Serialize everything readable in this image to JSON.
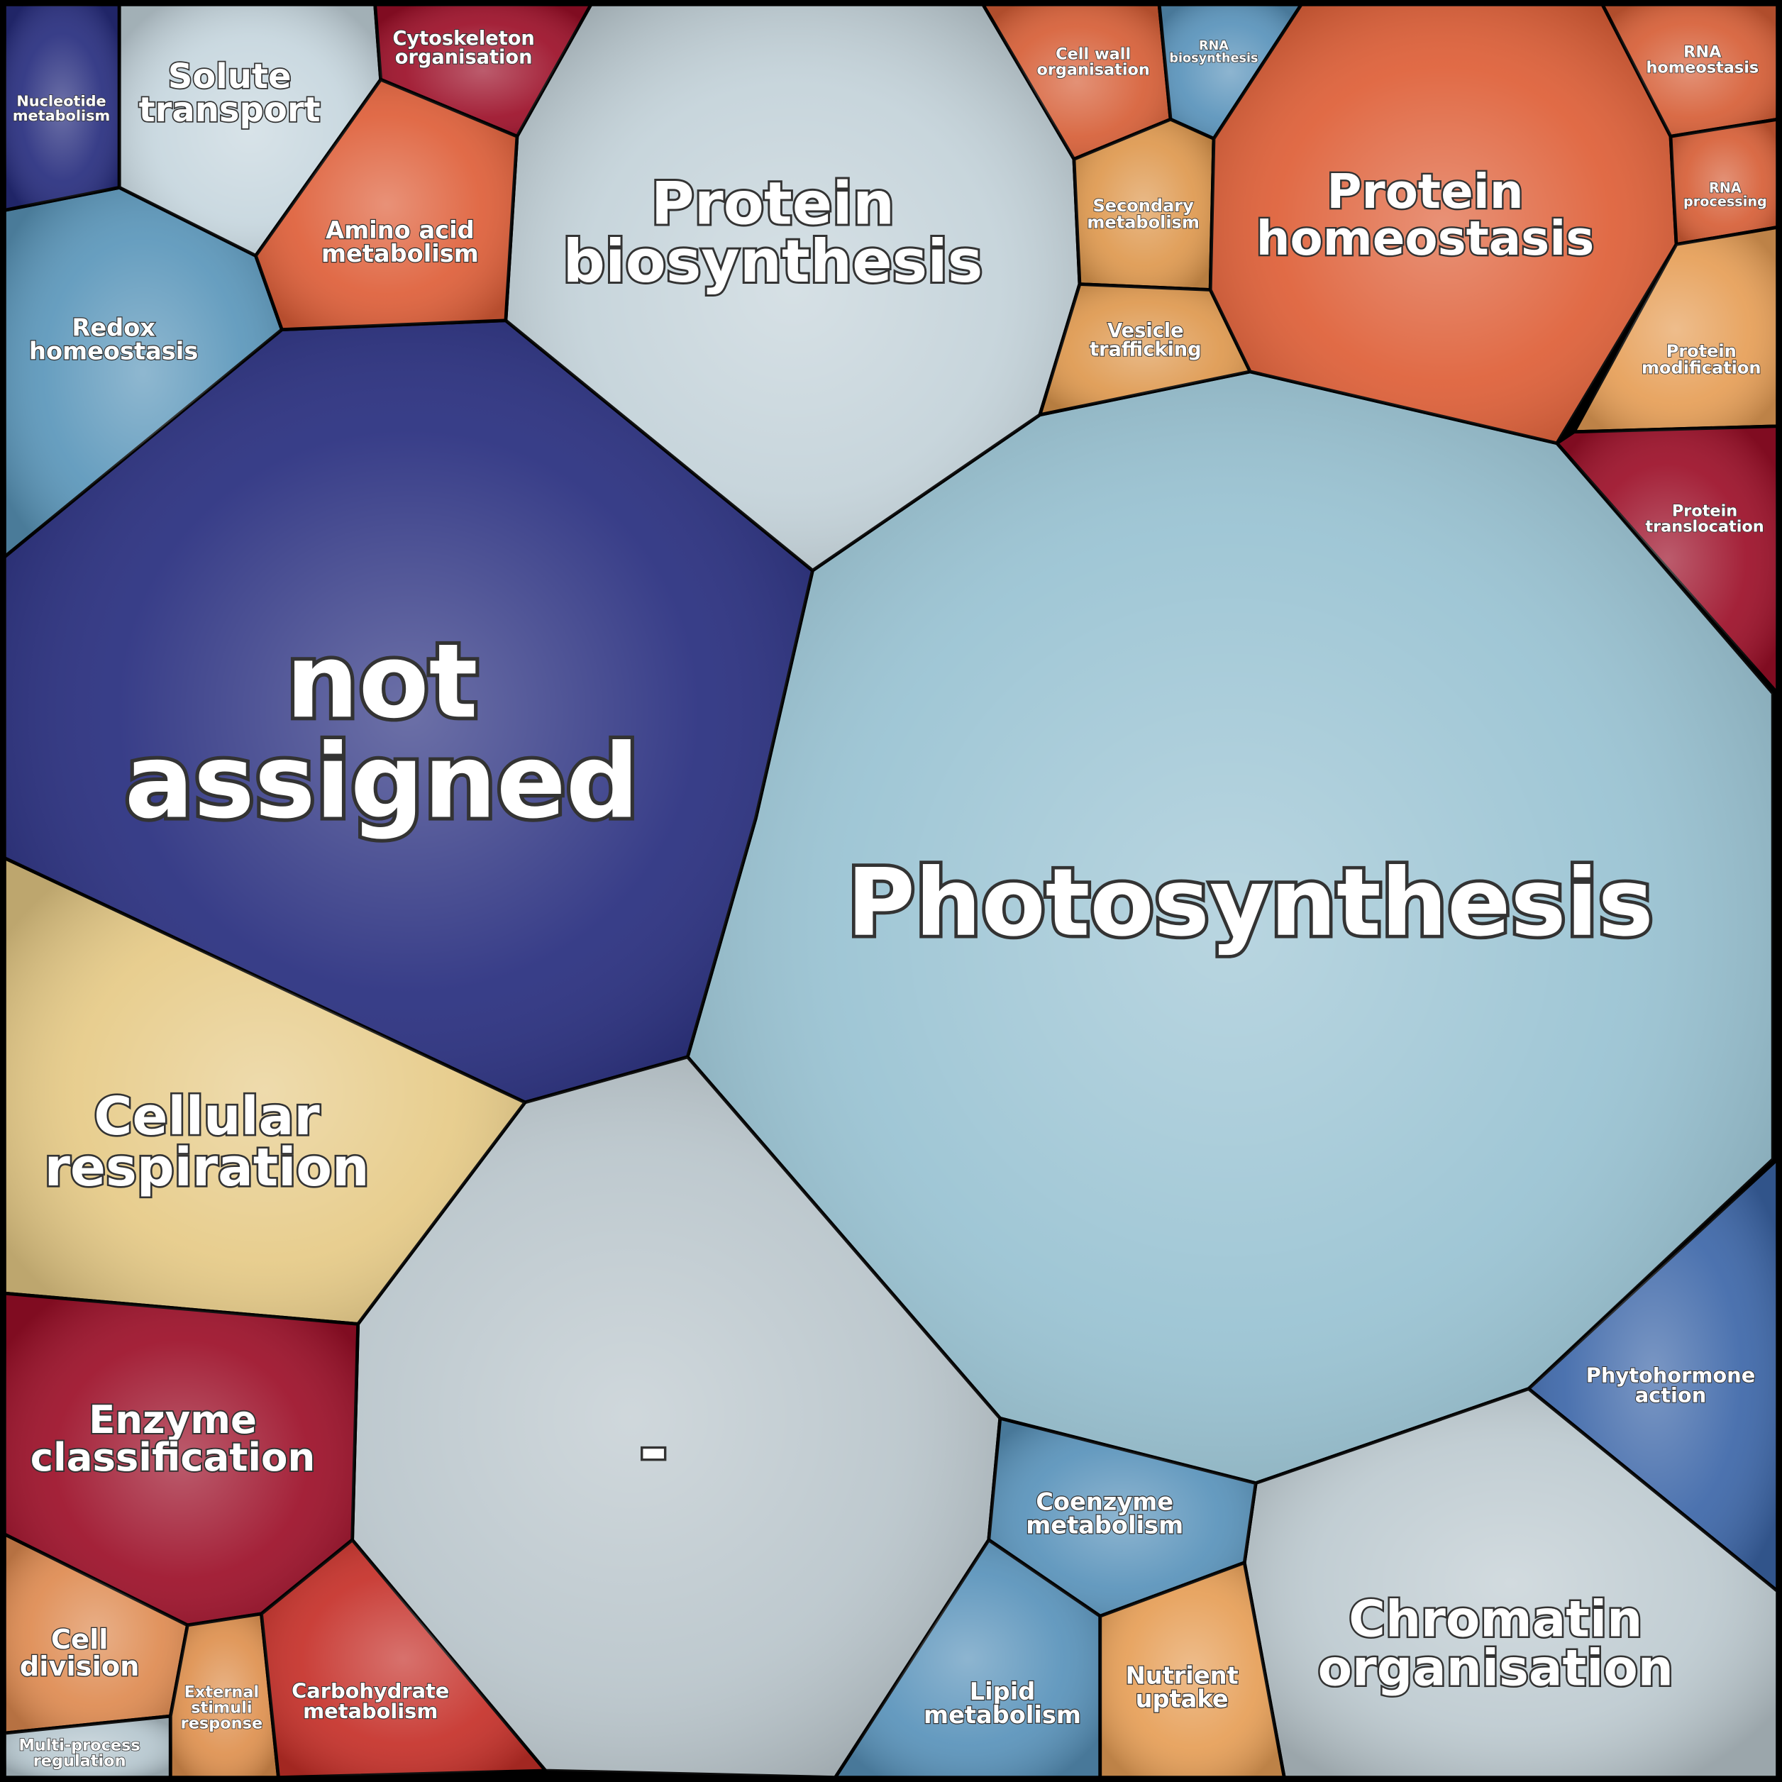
{
  "cells": [
    {
      "label": [
        "Photosynthesis"
      ],
      "color": "#98c2d2"
    },
    {
      "label": [
        "not",
        "assigned"
      ],
      "color": "#272d7e"
    },
    {
      "label": [
        "Protein",
        "biosynthesis"
      ],
      "color": "#c3d2d9"
    },
    {
      "label": [
        "-"
      ],
      "color": "#b9c5cb"
    },
    {
      "label": [
        "Cellular",
        "respiration"
      ],
      "color": "#e6ca86"
    },
    {
      "label": [
        "Enzyme",
        "classification"
      ],
      "color": "#9c0f28"
    },
    {
      "label": [
        "Cell",
        "division"
      ],
      "color": "#de8a50"
    },
    {
      "label": [
        "Multi-process",
        "regulation"
      ],
      "color": "#b5c6ce"
    },
    {
      "label": [
        "External",
        "stimuli",
        "response"
      ],
      "color": "#de904e"
    },
    {
      "label": [
        "Carbohydrate",
        "metabolism"
      ],
      "color": "#c52f28"
    },
    {
      "label": [
        "Redox",
        "homeostasis"
      ],
      "color": "#5a96ba"
    },
    {
      "label": [
        "Nucleotide",
        "metabolism"
      ],
      "color": "#272d7e"
    },
    {
      "label": [
        "Solute",
        "transport"
      ],
      "color": "#c6d6de"
    },
    {
      "label": [
        "Cytoskeleton",
        "organisation"
      ],
      "color": "#9c0f28"
    },
    {
      "label": [
        "Amino acid",
        "metabolism"
      ],
      "color": "#de5e38"
    },
    {
      "label": [
        "Cell wall",
        "organisation"
      ],
      "color": "#d65e36"
    },
    {
      "label": [
        "RNA",
        "biosynthesis"
      ],
      "color": "#5892ba"
    },
    {
      "label": [
        "Secondary",
        "metabolism"
      ],
      "color": "#de984e"
    },
    {
      "label": [
        "Vesicle",
        "trafficking"
      ],
      "color": "#de984e"
    },
    {
      "label": [
        "Protein",
        "homeostasis"
      ],
      "color": "#de5e36"
    },
    {
      "label": [
        "RNA",
        "homeostasis"
      ],
      "color": "#d65e36"
    },
    {
      "label": [
        "RNA",
        "processing"
      ],
      "color": "#d65e36"
    },
    {
      "label": [
        "Protein",
        "modification"
      ],
      "color": "#e69e56"
    },
    {
      "label": [
        "Protein",
        "translocation"
      ],
      "color": "#9c0f28"
    },
    {
      "label": [
        "Phytohormone",
        "action"
      ],
      "color": "#3c66a8"
    },
    {
      "label": [
        "Chromatin",
        "organisation"
      ],
      "color": "#bdcad0"
    },
    {
      "label": [
        "Coenzyme",
        "metabolism"
      ],
      "color": "#5892ba"
    },
    {
      "label": [
        "Lipid",
        "metabolism"
      ],
      "color": "#5892ba"
    },
    {
      "label": [
        "Nutrient",
        "uptake"
      ],
      "color": "#e69e56"
    }
  ]
}
